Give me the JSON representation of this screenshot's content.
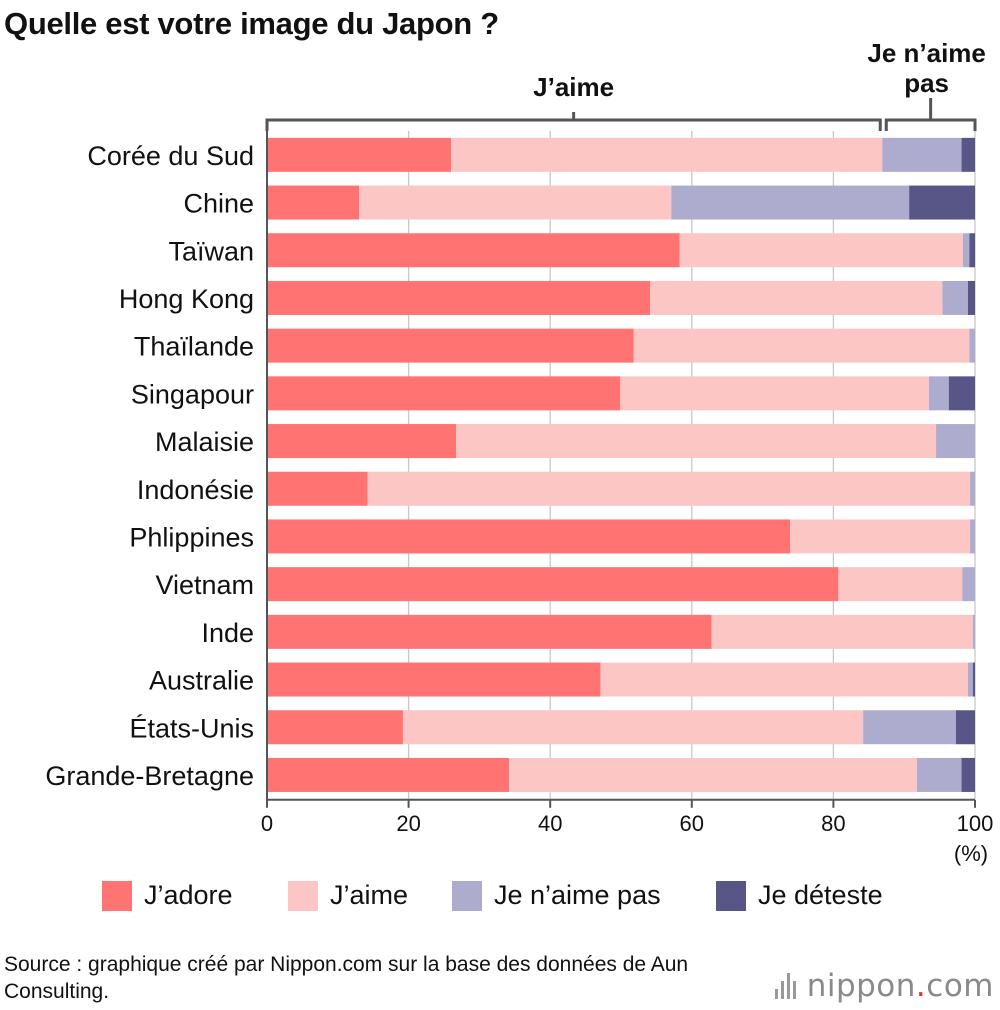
{
  "title": "Quelle est votre image du Japon ?",
  "brace_like": "J’aime",
  "brace_dislike_line1": "Je n’aime",
  "brace_dislike_line2": "pas",
  "x_unit": "(%)",
  "colors": {
    "adore": "#ff7472",
    "aime": "#fcc6c5",
    "naime_pas": "#adaccf",
    "deteste": "#575687",
    "grid": "#c8c8c8",
    "axis": "#555555"
  },
  "chart_data": {
    "type": "bar",
    "orientation": "horizontal",
    "stacked": true,
    "categories": [
      "Corée du Sud",
      "Chine",
      "Taïwan",
      "Hong Kong",
      "Thaïlande",
      "Singapour",
      "Malaisie",
      "Indonésie",
      "Phlippines",
      "Vietnam",
      "Inde",
      "Australie",
      "États-Unis",
      "Grande-Bretagne"
    ],
    "series": [
      {
        "name": "J’adore",
        "color": "#ff7472",
        "values": [
          26,
          13,
          58.3,
          54.1,
          51.8,
          49.9,
          26.7,
          14.2,
          73.9,
          80.7,
          62.8,
          47.1,
          19.2,
          34.2
        ]
      },
      {
        "name": "J’aime",
        "color": "#fcc6c5",
        "values": [
          60.9,
          44.1,
          40,
          41.3,
          47.4,
          43.6,
          67.8,
          85.1,
          25.4,
          17.5,
          36.9,
          51.9,
          65,
          57.6
        ]
      },
      {
        "name": "Je n’aime pas",
        "color": "#adaccf",
        "values": [
          11.2,
          33.6,
          0.9,
          3.6,
          0.8,
          2.8,
          5.5,
          0.7,
          0.7,
          1.8,
          0.3,
          0.7,
          13.1,
          6.3
        ]
      },
      {
        "name": "Je déteste",
        "color": "#575687",
        "values": [
          1.9,
          9.3,
          0.8,
          1,
          0,
          3.7,
          0,
          0,
          0,
          0,
          0,
          0.3,
          2.7,
          1.9
        ]
      }
    ],
    "xlim": [
      0,
      100
    ],
    "xticks": [
      0,
      20,
      40,
      60,
      80,
      100
    ],
    "grid": true,
    "legend_position": "bottom"
  },
  "source_text": "Source : graphique créé par Nippon.com sur la base des données de Aun Consulting.",
  "logo": {
    "main": "nippon",
    "dot": ".",
    "suffix": "com"
  }
}
